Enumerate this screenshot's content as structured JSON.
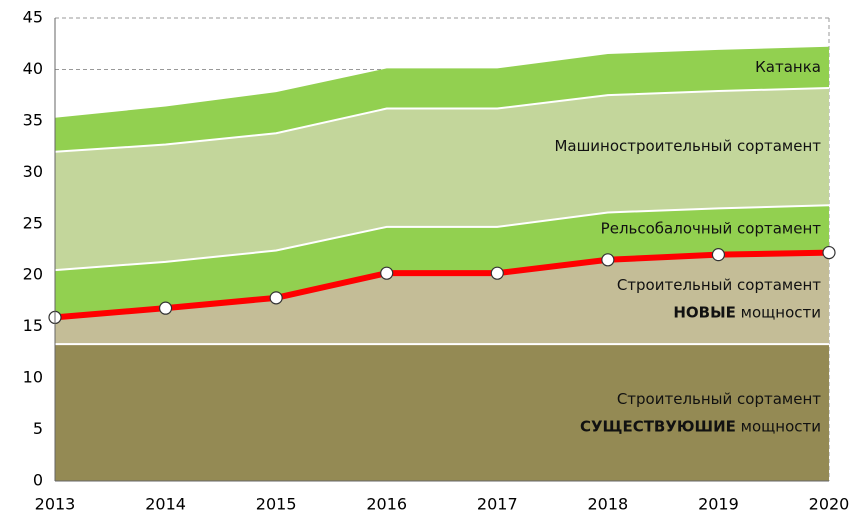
{
  "chart_data": {
    "type": "stacked_area",
    "x": [
      2013,
      2014,
      2015,
      2016,
      2017,
      2018,
      2019,
      2020
    ],
    "xlim": [
      2013,
      2020
    ],
    "xticks": [
      2013,
      2014,
      2015,
      2016,
      2017,
      2018,
      2019,
      2020
    ],
    "ylim": [
      0,
      45
    ],
    "yticks": [
      0,
      5,
      10,
      15,
      20,
      25,
      30,
      35,
      40,
      45
    ],
    "grid": true,
    "series": [
      {
        "name": [
          "Строительный сортамент",
          "СУЩЕСТВУЮШИЕ",
          "мощности"
        ],
        "color": "#948a54",
        "values": [
          13.3,
          13.3,
          13.3,
          13.3,
          13.3,
          13.3,
          13.3,
          13.3
        ]
      },
      {
        "name": [
          "Строительный сортамент",
          "НОВЫЕ",
          "мощности"
        ],
        "color": "#c4bd97",
        "line_color": "#ff0000",
        "values": [
          2.6,
          3.5,
          4.5,
          6.9,
          6.9,
          8.2,
          8.7,
          8.9
        ]
      },
      {
        "name": [
          "Рельсобалочный сортамент"
        ],
        "color": "#92d050",
        "values": [
          4.6,
          4.5,
          4.6,
          4.5,
          4.5,
          4.6,
          4.5,
          4.6
        ]
      },
      {
        "name": [
          "Машиностроительный сортамент"
        ],
        "color": "#c3d69b",
        "values": [
          11.5,
          11.4,
          11.4,
          11.5,
          11.5,
          11.4,
          11.4,
          11.4
        ]
      },
      {
        "name": [
          "Катанка"
        ],
        "color": "#92d050",
        "values": [
          3.3,
          3.7,
          4.0,
          3.9,
          3.9,
          4.0,
          4.0,
          4.0
        ]
      }
    ]
  }
}
